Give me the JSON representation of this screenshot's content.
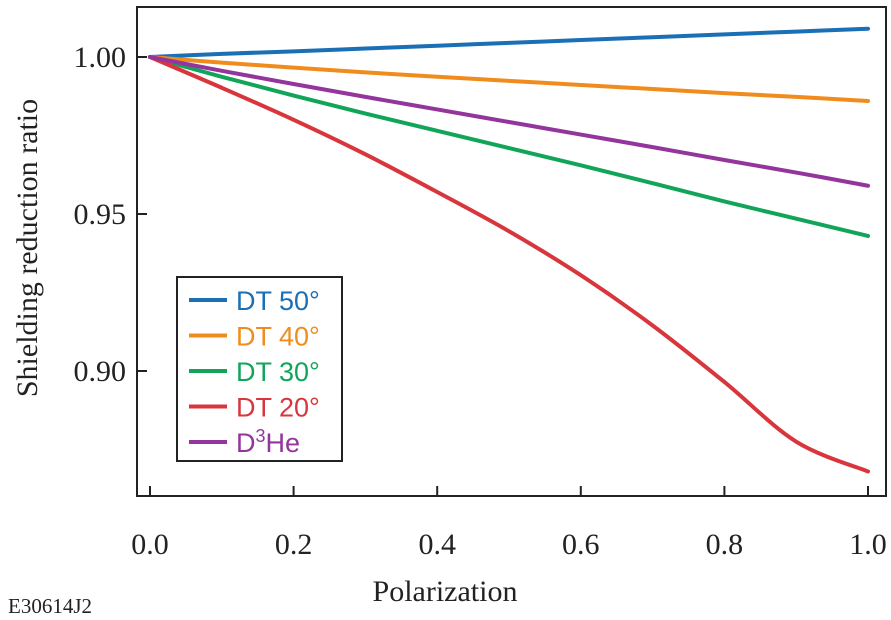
{
  "figure_id": "E30614J2",
  "chart_data": {
    "type": "line",
    "title": "",
    "xlabel": "Polarization",
    "ylabel": "Shielding reduction ratio",
    "xlim": [
      0.0,
      1.0
    ],
    "ylim": [
      0.866,
      1.016
    ],
    "x_ticks": [
      "0.0",
      "0.2",
      "0.4",
      "0.6",
      "0.8",
      "1.0"
    ],
    "x_tick_values": [
      0.0,
      0.2,
      0.4,
      0.6,
      0.8,
      1.0
    ],
    "y_ticks": [
      "0.90",
      "0.95",
      "1.00"
    ],
    "y_tick_values": [
      0.9,
      0.95,
      1.0
    ],
    "grid": false,
    "legend_position": "bottom-left",
    "x": [
      0.0,
      0.1,
      0.2,
      0.3,
      0.4,
      0.5,
      0.6,
      0.7,
      0.8,
      0.9,
      1.0
    ],
    "series": [
      {
        "name": "DT 50°",
        "color": "#1a6fb5",
        "values": [
          1.0,
          1.001,
          1.0018,
          1.0027,
          1.0036,
          1.0045,
          1.0054,
          1.0063,
          1.0072,
          1.0081,
          1.009
        ]
      },
      {
        "name": "DT 40°",
        "color": "#f08c1e",
        "values": [
          1.0,
          0.9982,
          0.9966,
          0.9951,
          0.9937,
          0.9924,
          0.9911,
          0.9898,
          0.9885,
          0.9873,
          0.986
        ]
      },
      {
        "name": "DT 30°",
        "color": "#12a55a",
        "values": [
          1.0,
          0.9937,
          0.9877,
          0.982,
          0.9765,
          0.971,
          0.9655,
          0.9598,
          0.954,
          0.9485,
          0.943
        ]
      },
      {
        "name": "DT 20°",
        "color": "#d8363c",
        "values": [
          1.0,
          0.9902,
          0.98,
          0.969,
          0.957,
          0.9445,
          0.9305,
          0.9145,
          0.8965,
          0.8775,
          0.868
        ]
      },
      {
        "name_parts": [
          "D",
          "3",
          "He"
        ],
        "name": "D3He",
        "color": "#93359c",
        "values": [
          1.0,
          0.9956,
          0.9914,
          0.9873,
          0.9833,
          0.9793,
          0.9753,
          0.9713,
          0.9672,
          0.9632,
          0.959
        ]
      }
    ]
  }
}
